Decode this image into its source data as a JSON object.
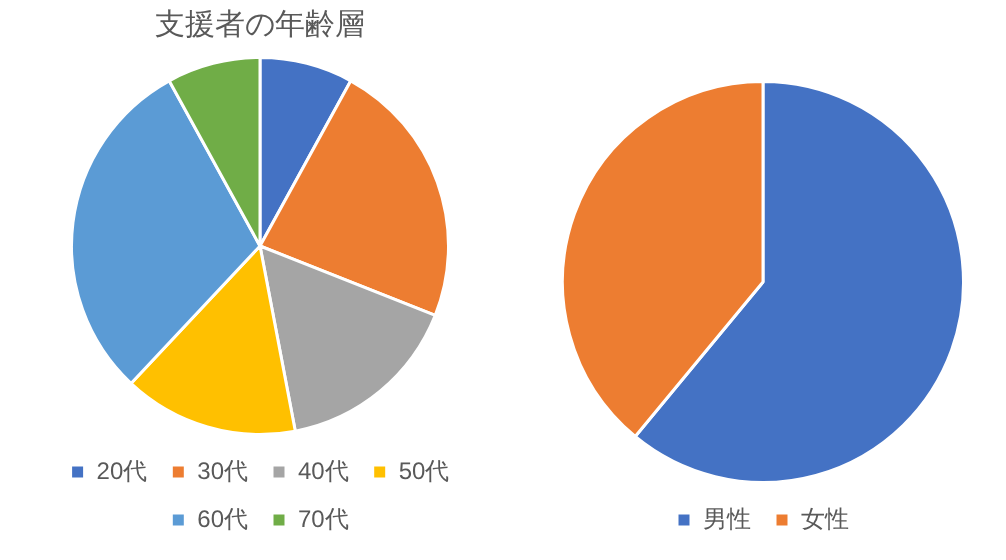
{
  "chart_data": [
    {
      "type": "pie",
      "title": "支援者の年齢層",
      "categories": [
        "20代",
        "30代",
        "40代",
        "50代",
        "60代",
        "70代"
      ],
      "values": [
        8,
        23,
        16,
        15,
        30,
        8
      ],
      "colors": [
        "#4472c4",
        "#ed7d31",
        "#a5a5a5",
        "#ffc000",
        "#5b9bd5",
        "#70ad47"
      ],
      "legend": "bottom"
    },
    {
      "type": "pie",
      "categories": [
        "男性",
        "女性"
      ],
      "values": [
        61,
        39
      ],
      "colors": [
        "#4472c4",
        "#ed7d31"
      ],
      "legend": "bottom"
    }
  ]
}
